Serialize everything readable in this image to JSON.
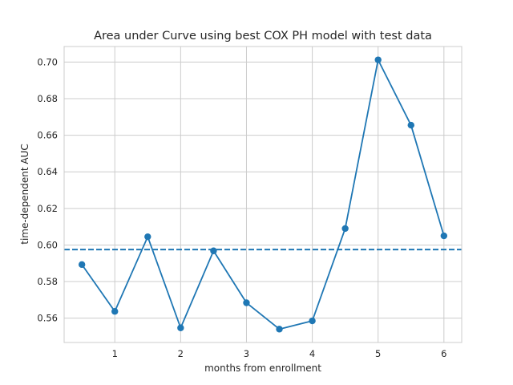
{
  "chart_data": {
    "type": "line",
    "title": "Area under Curve using best COX PH model with test data",
    "xlabel": "months from enrollment",
    "ylabel": "time-dependent AUC",
    "x": [
      0.5,
      1.0,
      1.5,
      2.0,
      2.5,
      3.0,
      3.5,
      4.0,
      4.5,
      5.0,
      5.5,
      6.0
    ],
    "series": [
      {
        "values": [
          0.5893,
          0.5637,
          0.6045,
          0.5547,
          0.5968,
          0.5684,
          0.554,
          0.5585,
          0.609,
          0.7012,
          0.6655,
          0.605
        ],
        "color": "#1f77b4",
        "marker": "circle"
      }
    ],
    "reference_line": {
      "y": 0.5975,
      "style": "dashed",
      "color": "#1f77b4"
    },
    "xticks": [
      1,
      2,
      3,
      4,
      5,
      6
    ],
    "xtick_labels": [
      "1",
      "2",
      "3",
      "4",
      "5",
      "6"
    ],
    "yticks": [
      0.56,
      0.58,
      0.6,
      0.62,
      0.64,
      0.66,
      0.68,
      0.7
    ],
    "ytick_labels": [
      "0.56",
      "0.58",
      "0.60",
      "0.62",
      "0.64",
      "0.66",
      "0.68",
      "0.70"
    ],
    "xlim": [
      0.23,
      6.27
    ],
    "ylim": [
      0.5467,
      0.7085
    ],
    "grid": true,
    "legend": "none"
  }
}
